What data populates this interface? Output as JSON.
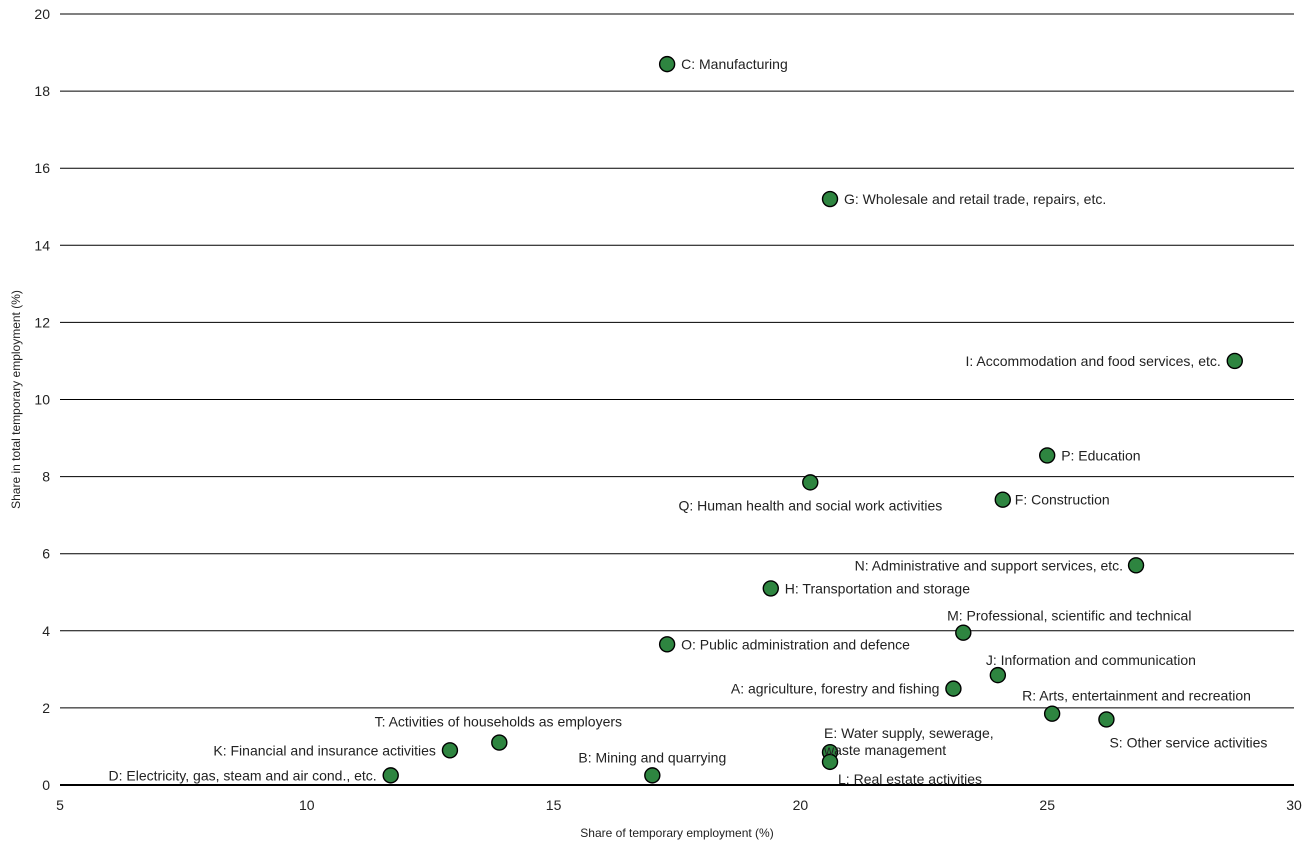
{
  "chart_data": {
    "type": "scatter",
    "title": "",
    "xlabel": "Share of temporary employment (%)",
    "ylabel": "Share in total temporary employment (%)",
    "xlim": [
      5,
      30
    ],
    "ylim": [
      0,
      20
    ],
    "xticks": [
      5,
      10,
      15,
      20,
      25,
      30
    ],
    "yticks": [
      0,
      2,
      4,
      6,
      8,
      10,
      12,
      14,
      16,
      18,
      20
    ],
    "grid": "horizontal",
    "marker_color": "#2e8540",
    "points": [
      {
        "label": "C: Manufacturing",
        "x": 17.3,
        "y": 18.7
      },
      {
        "label": "G: Wholesale and retail trade, repairs, etc.",
        "x": 20.6,
        "y": 15.2
      },
      {
        "label": "I: Accommodation and food services, etc.",
        "x": 28.8,
        "y": 11.0
      },
      {
        "label": "P: Education",
        "x": 25.0,
        "y": 8.55
      },
      {
        "label": "Q: Human health and social work activities",
        "x": 20.2,
        "y": 7.85
      },
      {
        "label": "F: Construction",
        "x": 24.1,
        "y": 7.4
      },
      {
        "label": "N: Administrative and support services, etc.",
        "x": 26.8,
        "y": 5.7
      },
      {
        "label": "H: Transportation and storage",
        "x": 19.4,
        "y": 5.1
      },
      {
        "label": "M: Professional, scientific and technical",
        "x": 23.3,
        "y": 3.95
      },
      {
        "label": "O: Public administration and defence",
        "x": 17.3,
        "y": 3.65
      },
      {
        "label": "J: Information and communication",
        "x": 24.0,
        "y": 2.85
      },
      {
        "label": "A: agriculture, forestry and fishing",
        "x": 23.1,
        "y": 2.5
      },
      {
        "label": "R: Arts, entertainment and recreation",
        "x": 25.1,
        "y": 1.85
      },
      {
        "label": "S: Other service activities",
        "x": 26.2,
        "y": 1.7
      },
      {
        "label": "T: Activities of households as employers",
        "x": 13.9,
        "y": 1.1
      },
      {
        "label": "K: Financial and insurance activities",
        "x": 12.9,
        "y": 0.9
      },
      {
        "label": "E: Water supply, sewerage, waste management",
        "x": 20.6,
        "y": 0.85
      },
      {
        "label": "L: Real estate activities",
        "x": 20.6,
        "y": 0.6
      },
      {
        "label": "B: Mining and quarrying",
        "x": 17.0,
        "y": 0.25
      },
      {
        "label": "D: Electricity, gas, steam and air cond., etc.",
        "x": 11.7,
        "y": 0.25
      }
    ]
  }
}
